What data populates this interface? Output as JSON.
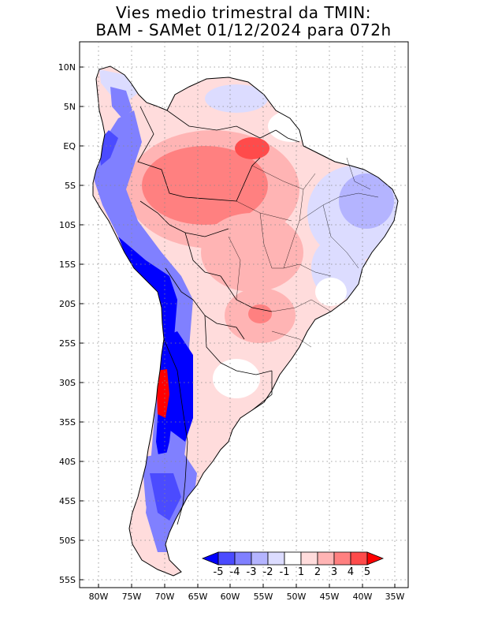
{
  "title": {
    "line1": "Vies medio trimestral da TMIN:",
    "line2": "BAM - SAMet 01/12/2024  para 072h"
  },
  "map": {
    "lon_ticks": [
      "80W",
      "75W",
      "70W",
      "65W",
      "60W",
      "55W",
      "50W",
      "45W",
      "40W",
      "35W"
    ],
    "lat_ticks": [
      "10N",
      "5N",
      "EQ",
      "5S",
      "10S",
      "15S",
      "20S",
      "25S",
      "30S",
      "35S",
      "40S",
      "45S",
      "50S",
      "55S"
    ],
    "grid": "dotted",
    "region": "South America"
  },
  "colorbar": {
    "labels": [
      "-5",
      "-4",
      "-3",
      "-2",
      "-1",
      "1",
      "2",
      "3",
      "4",
      "5"
    ],
    "colors": [
      "#0000ff",
      "#4b4bff",
      "#8080ff",
      "#b4b4ff",
      "#dcdcff",
      "#ffffff",
      "#ffdcdc",
      "#ffb4b4",
      "#ff8080",
      "#ff4b4b",
      "#ff0000"
    ]
  }
}
